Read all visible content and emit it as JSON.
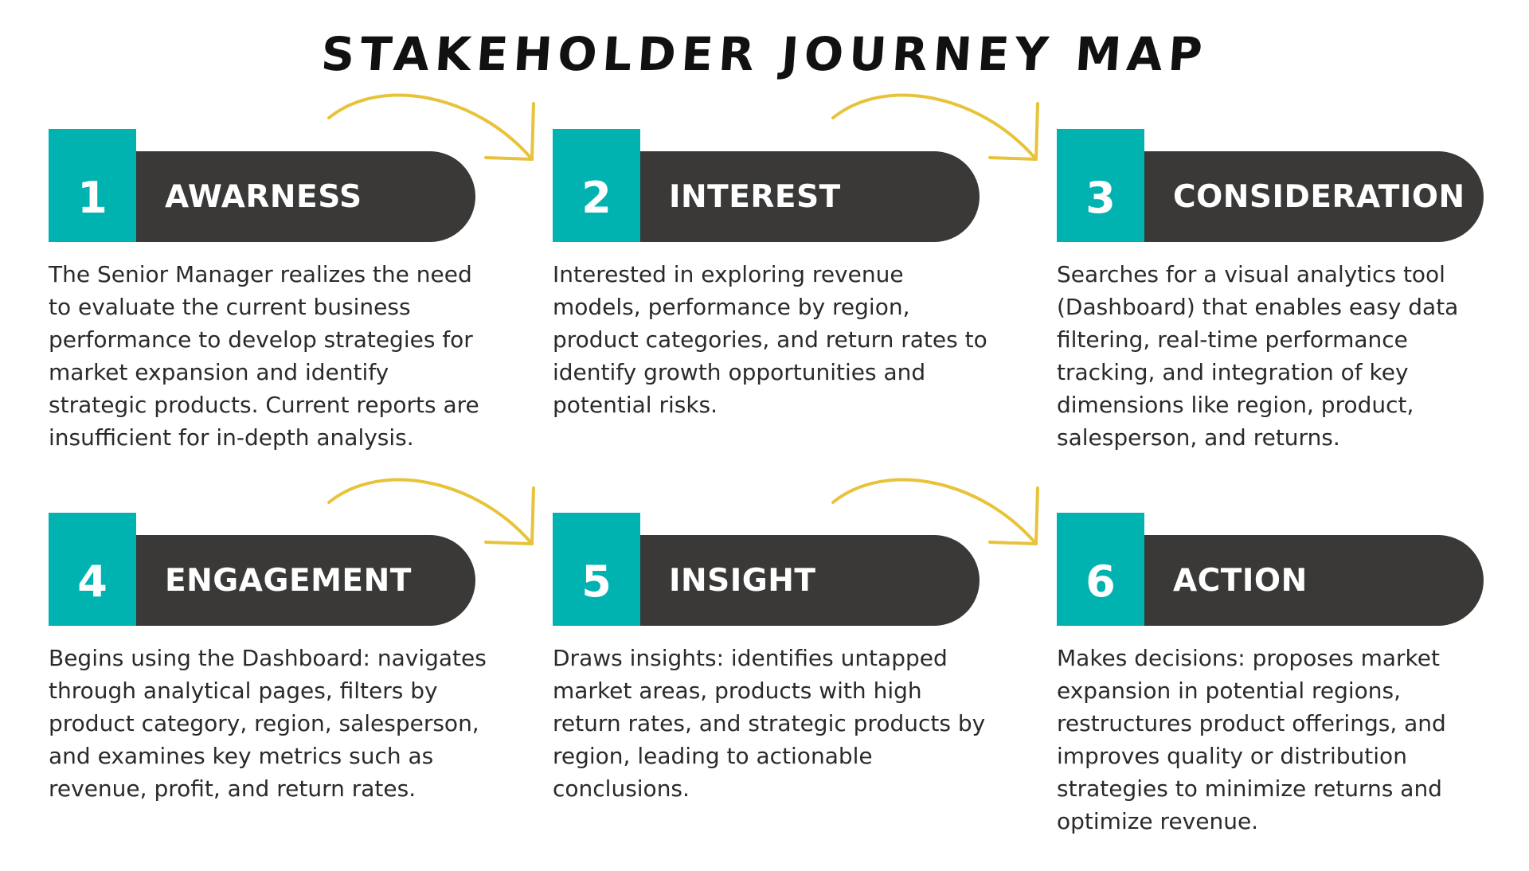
{
  "title": "STAKEHOLDER JOURNEY MAP",
  "colors": {
    "accent": "#00b2b0",
    "label_bg": "#3a3937",
    "arrow": "#e8c33a",
    "text": "#2a2a2a"
  },
  "stages": [
    {
      "number": "1",
      "label": "AWARNESS",
      "description": "The Senior Manager realizes the need to evaluate the current business performance to develop strategies for market expansion and identify strategic products. Current reports are insufficient for in-depth analysis."
    },
    {
      "number": "2",
      "label": "INTEREST",
      "description": "Interested in exploring revenue models, performance by region, product categories, and return rates to identify growth opportunities and potential risks."
    },
    {
      "number": "3",
      "label": "CONSIDERATION",
      "description": "Searches for a visual analytics tool (Dashboard) that enables easy data filtering, real-time performance tracking, and integration of key dimensions like region, product, salesperson, and returns."
    },
    {
      "number": "4",
      "label": "ENGAGEMENT",
      "description": "Begins using the Dashboard: navigates through analytical pages, filters by product category, region, salesperson, and examines key metrics such as revenue, profit, and return rates."
    },
    {
      "number": "5",
      "label": "INSIGHT",
      "description": "Draws insights: identifies untapped market areas, products with high return rates, and strategic products by region, leading to actionable conclusions."
    },
    {
      "number": "6",
      "label": "ACTION",
      "description": "Makes decisions: proposes market expansion in potential regions, restructures product offerings, and improves quality or distribution strategies to minimize returns and optimize revenue."
    }
  ]
}
